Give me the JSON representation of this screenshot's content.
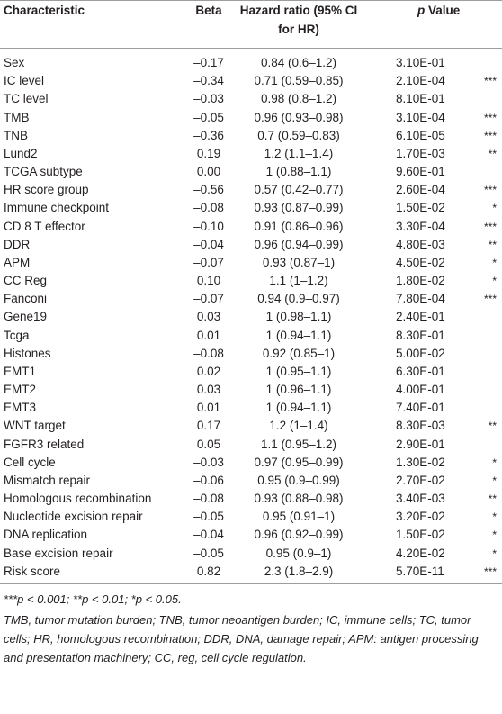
{
  "table": {
    "header": [
      "Characteristic",
      "Beta",
      "Hazard ratio (95% CI",
      "for HR)",
      "p",
      "Value"
    ],
    "rows": [
      {
        "characteristic": "Sex",
        "beta": "–0.17",
        "hr": "0.84 (0.6–1.2)",
        "p": "3.10E-01"
      },
      {
        "characteristic": "IC level",
        "beta": "–0.34",
        "hr": "0.71 (0.59–0.85)",
        "p": "2.10E-04",
        "sig": "***"
      },
      {
        "characteristic": "TC level",
        "beta": "–0.03",
        "hr": "0.98 (0.8–1.2)",
        "p": "8.10E-01"
      },
      {
        "characteristic": "TMB",
        "beta": "–0.05",
        "hr": "0.96 (0.93–0.98)",
        "p": "3.10E-04",
        "sig": "***"
      },
      {
        "characteristic": "TNB",
        "beta": "–0.36",
        "hr": "0.7 (0.59–0.83)",
        "p": "6.10E-05",
        "sig": "***"
      },
      {
        "characteristic": "Lund2",
        "beta": "0.19",
        "hr": "1.2 (1.1–1.4)",
        "p": "1.70E-03",
        "sig": "**"
      },
      {
        "characteristic": "TCGA subtype",
        "beta": "0.00",
        "hr": "1 (0.88–1.1)",
        "p": "9.60E-01"
      },
      {
        "characteristic": "HR score group",
        "beta": "–0.56",
        "hr": "0.57 (0.42–0.77)",
        "p": "2.60E-04",
        "sig": "***"
      },
      {
        "characteristic": "Immune checkpoint",
        "beta": "–0.08",
        "hr": "0.93 (0.87–0.99)",
        "p": "1.50E-02",
        "sig": "*"
      },
      {
        "characteristic": "CD 8 T effector",
        "beta": "–0.10",
        "hr": "0.91 (0.86–0.96)",
        "p": "3.30E-04",
        "sig": "***"
      },
      {
        "characteristic": "DDR",
        "beta": "–0.04",
        "hr": "0.96 (0.94–0.99)",
        "p": "4.80E-03",
        "sig": "**"
      },
      {
        "characteristic": "APM",
        "beta": "–0.07",
        "hr": "0.93 (0.87–1)",
        "p": "4.50E-02",
        "sig": "*"
      },
      {
        "characteristic": "CC Reg",
        "beta": "0.10",
        "hr": "1.1 (1–1.2)",
        "p": "1.80E-02",
        "sig": "*"
      },
      {
        "characteristic": "Fanconi",
        "beta": "–0.07",
        "hr": "0.94 (0.9–0.97)",
        "p": "7.80E-04",
        "sig": "***"
      },
      {
        "characteristic": "Gene19",
        "beta": "0.03",
        "hr": "1 (0.98–1.1)",
        "p": "2.40E-01"
      },
      {
        "characteristic": "Tcga",
        "beta": "0.01",
        "hr": "1 (0.94–1.1)",
        "p": "8.30E-01"
      },
      {
        "characteristic": "Histones",
        "beta": "–0.08",
        "hr": "0.92 (0.85–1)",
        "p": "5.00E-02"
      },
      {
        "characteristic": "EMT1",
        "beta": "0.02",
        "hr": "1 (0.95–1.1)",
        "p": "6.30E-01"
      },
      {
        "characteristic": "EMT2",
        "beta": "0.03",
        "hr": "1 (0.96–1.1)",
        "p": "4.00E-01"
      },
      {
        "characteristic": "EMT3",
        "beta": "0.01",
        "hr": "1 (0.94–1.1)",
        "p": "7.40E-01"
      },
      {
        "characteristic": "WNT target",
        "beta": "0.17",
        "hr": "1.2 (1–1.4)",
        "p": "8.30E-03",
        "sig": "**"
      },
      {
        "characteristic": "FGFR3 related",
        "beta": "0.05",
        "hr": "1.1 (0.95–1.2)",
        "p": "2.90E-01"
      },
      {
        "characteristic": "Cell cycle",
        "beta": "–0.03",
        "hr": "0.97 (0.95–0.99)",
        "p": "1.30E-02",
        "sig": "*"
      },
      {
        "characteristic": "Mismatch repair",
        "beta": "–0.06",
        "hr": "0.95 (0.9–0.99)",
        "p": "2.70E-02",
        "sig": "*"
      },
      {
        "characteristic": "Homologous recombination",
        "beta": "–0.08",
        "hr": "0.93 (0.88–0.98)",
        "p": "3.40E-03",
        "sig": "**"
      },
      {
        "characteristic": "Nucleotide excision repair",
        "beta": "–0.05",
        "hr": "0.95 (0.91–1)",
        "p": "3.20E-02",
        "sig": "*"
      },
      {
        "characteristic": "DNA replication",
        "beta": "–0.04",
        "hr": "0.96 (0.92–0.99)",
        "p": "1.50E-02",
        "sig": "*"
      },
      {
        "characteristic": "Base excision repair",
        "beta": "–0.05",
        "hr": "0.95 (0.9–1)",
        "p": "4.20E-02",
        "sig": "*"
      },
      {
        "characteristic": "Risk score",
        "beta": "0.82",
        "hr": "2.3 (1.8–2.9)",
        "p": "5.70E-11",
        "sig": "***"
      }
    ],
    "footnotes": [
      "***p < 0.001; **p < 0.01; *p < 0.05.",
      "TMB, tumor mutation burden; TNB, tumor neoantigen burden; IC, immune cells; TC, tumor cells; HR, homologous recombination; DDR, DNA, damage repair; APM: antigen processing and presentation machinery; CC, reg, cell cycle regulation."
    ]
  }
}
